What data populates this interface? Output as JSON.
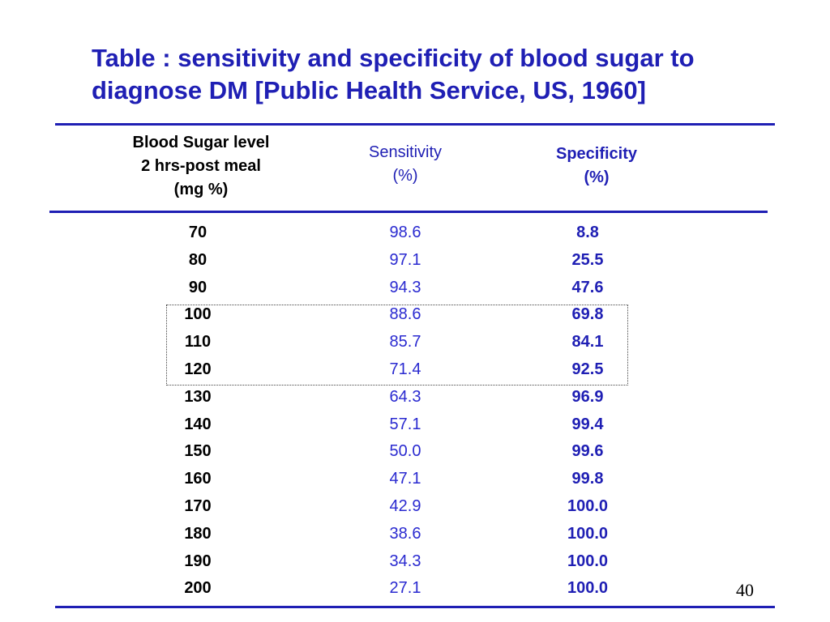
{
  "title": {
    "line1": "Table : sensitivity and specificity of blood sugar to",
    "line2": "diagnose DM [Public Health Service, US, 1960]"
  },
  "headers": {
    "blood_sugar": [
      "Blood Sugar level",
      "2 hrs-post meal",
      "(mg %)"
    ],
    "sensitivity": [
      "Sensitivity",
      "(%)"
    ],
    "specificity": [
      "Specificity",
      "(%)"
    ]
  },
  "colors": {
    "accent": "#1f1fb4",
    "text": "#000000"
  },
  "rows": [
    {
      "level": "70",
      "sensitivity": "98.6",
      "specificity": "8.8"
    },
    {
      "level": "80",
      "sensitivity": "97.1",
      "specificity": "25.5"
    },
    {
      "level": "90",
      "sensitivity": "94.3",
      "specificity": "47.6"
    },
    {
      "level": "100",
      "sensitivity": "88.6",
      "specificity": "69.8"
    },
    {
      "level": "110",
      "sensitivity": "85.7",
      "specificity": "84.1"
    },
    {
      "level": "120",
      "sensitivity": "71.4",
      "specificity": "92.5"
    },
    {
      "level": "130",
      "sensitivity": "64.3",
      "specificity": "96.9"
    },
    {
      "level": "140",
      "sensitivity": "57.1",
      "specificity": "99.4"
    },
    {
      "level": "150",
      "sensitivity": "50.0",
      "specificity": "99.6"
    },
    {
      "level": "160",
      "sensitivity": "47.1",
      "specificity": "99.8"
    },
    {
      "level": "170",
      "sensitivity": "42.9",
      "specificity": "100.0"
    },
    {
      "level": "180",
      "sensitivity": "38.6",
      "specificity": "100.0"
    },
    {
      "level": "190",
      "sensitivity": "34.3",
      "specificity": "100.0"
    },
    {
      "level": "200",
      "sensitivity": "27.1",
      "specificity": "100.0"
    }
  ],
  "page_number": "40"
}
